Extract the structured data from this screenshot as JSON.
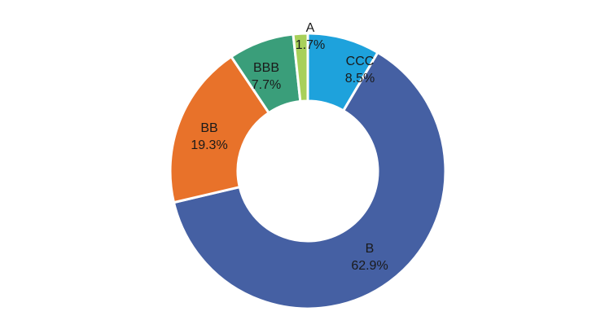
{
  "chart_data": {
    "type": "pie",
    "variant": "donut",
    "title": "",
    "slices": [
      {
        "label": "CCC",
        "value_text": "8.5%",
        "value": 8.5,
        "color": "#1ea2dc"
      },
      {
        "label": "B",
        "value_text": "62.9%",
        "value": 62.9,
        "color": "#4560a3"
      },
      {
        "label": "BB",
        "value_text": "19.3%",
        "value": 19.3,
        "color": "#e8722a"
      },
      {
        "label": "BBB",
        "value_text": "7.7%",
        "value": 7.7,
        "color": "#3a9e7a"
      },
      {
        "label": "A",
        "value_text": "1.7%",
        "value": 1.7,
        "color": "#a8d05a"
      }
    ],
    "legend": "none",
    "start_angle_deg": 0,
    "direction": "clockwise"
  }
}
